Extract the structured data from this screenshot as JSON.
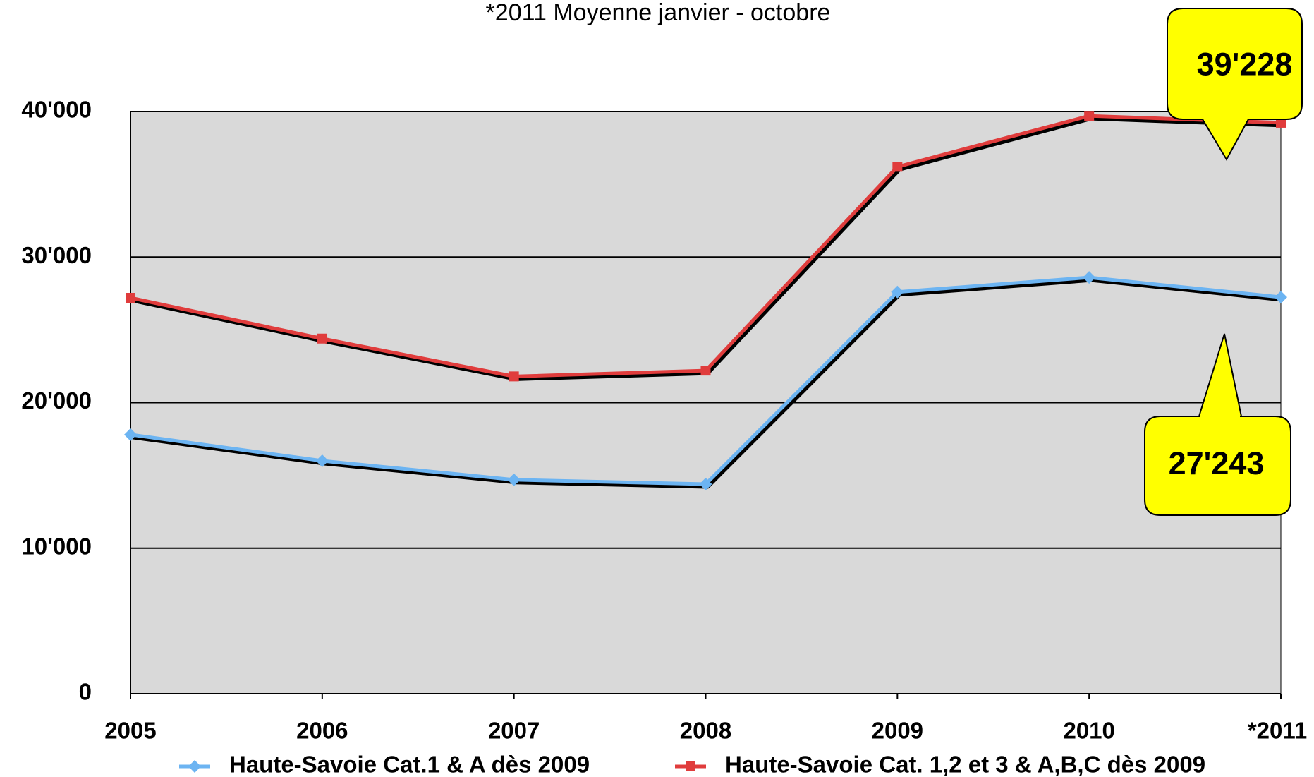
{
  "chart_data": {
    "type": "line",
    "title": "*2011 Moyenne janvier - octobre",
    "categories": [
      "2005",
      "2006",
      "2007",
      "2008",
      "2009",
      "2010",
      "*2011"
    ],
    "series": [
      {
        "name": "Haute-Savoie Cat.1 & A dès 2009",
        "color": "#6cb4f2",
        "marker": "diamond",
        "values": [
          17800,
          16000,
          14700,
          14400,
          27600,
          28600,
          27243
        ],
        "value_labels": [
          null,
          null,
          null,
          null,
          null,
          null,
          "27'243"
        ]
      },
      {
        "name": "Haute-Savoie Cat. 1,2 et 3 & A,B,C dès 2009",
        "color": "#e03c3c",
        "marker": "square",
        "values": [
          27200,
          24400,
          21800,
          22200,
          36200,
          39700,
          39228
        ],
        "value_labels": [
          null,
          null,
          null,
          null,
          null,
          null,
          "39'228"
        ]
      }
    ],
    "ylim": [
      0,
      40000
    ],
    "yticks": [
      0,
      {
        "value": 10000,
        "label": "10'000"
      },
      {
        "value": 20000,
        "label": "20'000"
      },
      {
        "value": 30000,
        "label": "30'000"
      },
      {
        "value": 40000,
        "label": "40'000"
      }
    ],
    "grid": true,
    "legend": "bottom"
  }
}
